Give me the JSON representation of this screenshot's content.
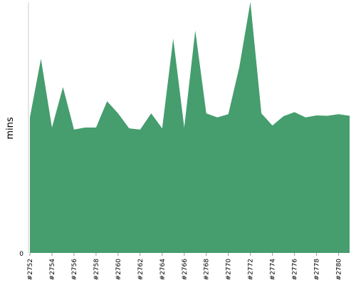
{
  "chart_data": {
    "type": "area",
    "ylabel": "mins",
    "xlabel": "",
    "title": "",
    "ylim": [
      0,
      62
    ],
    "y_ticks": [
      {
        "value": 0,
        "label": "0"
      }
    ],
    "x": [
      "#2752",
      "#2753",
      "#2754",
      "#2755",
      "#2756",
      "#2757",
      "#2758",
      "#2759",
      "#2760",
      "#2761",
      "#2762",
      "#2763",
      "#2764",
      "#2765",
      "#2766",
      "#2767",
      "#2768",
      "#2769",
      "#2770",
      "#2771",
      "#2772",
      "#2773",
      "#2774",
      "#2775",
      "#2776",
      "#2777",
      "#2778",
      "#2779",
      "#2780",
      "#2781"
    ],
    "x_tick_labels": [
      "#2752",
      "#2754",
      "#2756",
      "#2758",
      "#2760",
      "#2762",
      "#2764",
      "#2766",
      "#2768",
      "#2770",
      "#2772",
      "#2774",
      "#2776",
      "#2778",
      "#2780"
    ],
    "series": [
      {
        "name": "",
        "values": [
          33.5,
          48,
          31,
          41,
          30.5,
          31,
          31,
          37.5,
          34.5,
          30.8,
          30.5,
          34.5,
          30.8,
          53,
          31,
          55,
          34.5,
          33.5,
          34.3,
          46,
          64,
          34.5,
          31.5,
          33.8,
          34.8,
          33.5,
          34,
          33.9,
          34.3,
          33.9
        ]
      }
    ],
    "grid": false,
    "legend": "none",
    "colors": {
      "area": "#469d6e",
      "axis": "#cccccc"
    }
  }
}
